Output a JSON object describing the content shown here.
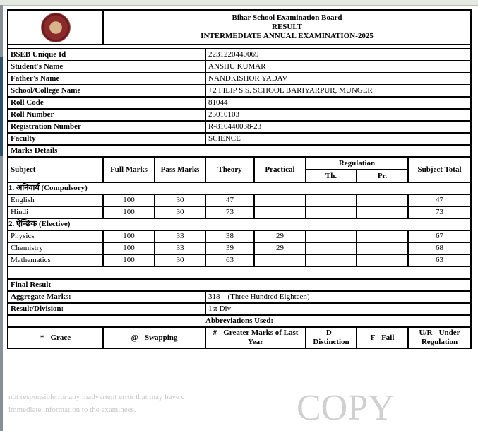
{
  "header": {
    "board": "Bihar School Examination Board",
    "result": "RESULT",
    "exam": "INTERMEDIATE ANNUAL EXAMINATION-2025"
  },
  "student": [
    {
      "label": "BSEB Unique Id",
      "value": "2231220440069"
    },
    {
      "label": "Student's Name",
      "value": "ANSHU KUMAR"
    },
    {
      "label": "Father's Name",
      "value": "NANDKISHOR YADAV"
    },
    {
      "label": "School/College Name",
      "value": "+2 FILIP S.S. SCHOOL BARIYARPUR, MUNGER"
    },
    {
      "label": "Roll Code",
      "value": "81044"
    },
    {
      "label": "Roll Number",
      "value": "25010103"
    },
    {
      "label": "Registration Number",
      "value": "R-810440038-23"
    },
    {
      "label": "Faculty",
      "value": "SCIENCE"
    }
  ],
  "marks": {
    "title": "Marks Details",
    "columns": {
      "subject": "Subject",
      "full": "Full Marks",
      "pass": "Pass Marks",
      "theory": "Theory",
      "practical": "Practical",
      "regulation": "Regulation",
      "th": "Th.",
      "pr": "Pr.",
      "total": "Subject Total"
    },
    "compulsory": {
      "title": "1. अनिवार्य (Compulsory)",
      "rows": [
        {
          "subject": "English",
          "full": "100",
          "pass": "30",
          "theory": "47",
          "practical": "",
          "th": "",
          "pr": "",
          "total": "47"
        },
        {
          "subject": "Hindi",
          "full": "100",
          "pass": "30",
          "theory": "73",
          "practical": "",
          "th": "",
          "pr": "",
          "total": "73"
        }
      ]
    },
    "elective": {
      "title": "2. ऐच्छिक (Elective)",
      "rows": [
        {
          "subject": "Physics",
          "full": "100",
          "pass": "33",
          "theory": "38",
          "practical": "29",
          "th": "",
          "pr": "",
          "total": "67"
        },
        {
          "subject": "Chemistry",
          "full": "100",
          "pass": "33",
          "theory": "39",
          "practical": "29",
          "th": "",
          "pr": "",
          "total": "68"
        },
        {
          "subject": "Mathematics",
          "full": "100",
          "pass": "30",
          "theory": "63",
          "practical": "",
          "th": "",
          "pr": "",
          "total": "63"
        }
      ]
    }
  },
  "final": {
    "title": "Final Result",
    "aggregate_label": "Aggregate Marks:",
    "aggregate_value": "318",
    "aggregate_words": "(Three Hundred Eighteen)",
    "division_label": "Result/Division:",
    "division_value": "1st Div"
  },
  "abbreviations": {
    "title": "Abbreviations Used:",
    "items": [
      "* - Grace",
      "@ - Swapping",
      "# - Greater Marks of Last Year",
      "D - Distinction",
      "F - Fail",
      "U/R - Under Regulation"
    ]
  },
  "watermark": {
    "copy": "COPY",
    "line1": "not responsible for any inadvertent error that may have c",
    "line2": "immediate information to the examinees."
  }
}
